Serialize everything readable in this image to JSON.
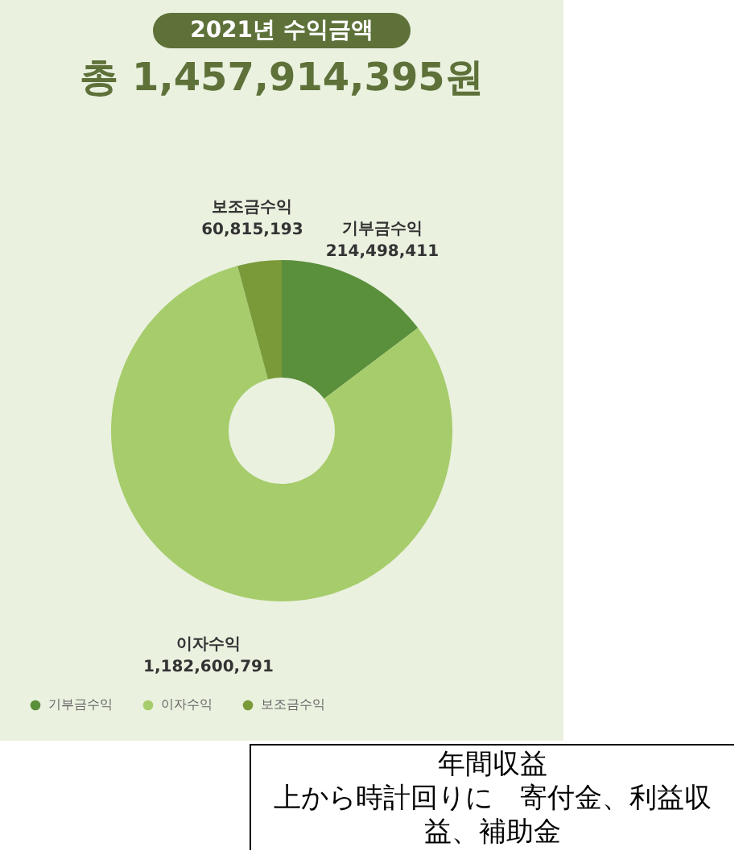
{
  "chart_data": {
    "type": "donut",
    "title": "2021년 수익금액",
    "subtitle": "총 1,457,914,395원",
    "categories": [
      "기부금수익",
      "이자수익",
      "보조금수익"
    ],
    "values": [
      214498411,
      1182600791,
      60815193
    ],
    "colors": [
      "#5a8f3c",
      "#a6cc6b",
      "#7a9a3a"
    ],
    "value_labels": [
      "214,498,411",
      "1,182,600,791",
      "60,815,193"
    ],
    "legend": "bottom left",
    "annotations": [
      "年間収益",
      "上から時計回りに　寄付金、利益収益、補助金"
    ]
  }
}
